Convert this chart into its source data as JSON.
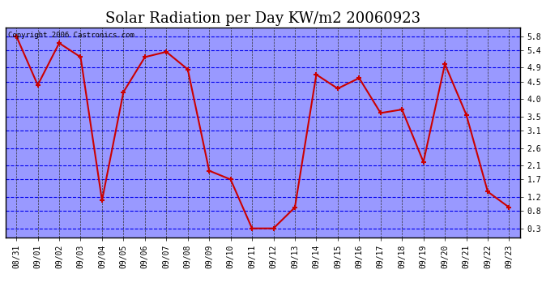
{
  "title": "Solar Radiation per Day KW/m2 20060923",
  "copyright": "Copyright 2006 Castronics.com",
  "dates": [
    "08/31",
    "09/01",
    "09/02",
    "09/03",
    "09/04",
    "09/05",
    "09/06",
    "09/07",
    "09/08",
    "09/09",
    "09/10",
    "09/11",
    "09/12",
    "09/13",
    "09/14",
    "09/15",
    "09/16",
    "09/17",
    "09/18",
    "09/19",
    "09/20",
    "09/21",
    "09/22",
    "09/23"
  ],
  "values": [
    5.8,
    4.4,
    5.6,
    5.2,
    1.1,
    4.2,
    5.2,
    5.35,
    4.85,
    1.95,
    1.7,
    0.3,
    0.3,
    0.9,
    4.7,
    4.3,
    4.6,
    3.6,
    3.7,
    2.2,
    5.0,
    3.55,
    1.35,
    0.9
  ],
  "line_color": "#cc0000",
  "marker_color": "#cc0000",
  "fig_bg_color": "#ffffff",
  "plot_bg_color": "#9999ff",
  "grid_h_color": "#0000ee",
  "grid_v_color": "#333333",
  "yticks": [
    0.3,
    0.8,
    1.2,
    1.7,
    2.1,
    2.6,
    3.1,
    3.5,
    4.0,
    4.5,
    4.9,
    5.4,
    5.8
  ],
  "ylim_min": 0.05,
  "ylim_max": 6.05,
  "title_fontsize": 13,
  "copyright_fontsize": 6.5,
  "tick_fontsize": 7,
  "figwidth": 6.9,
  "figheight": 3.75,
  "dpi": 100
}
